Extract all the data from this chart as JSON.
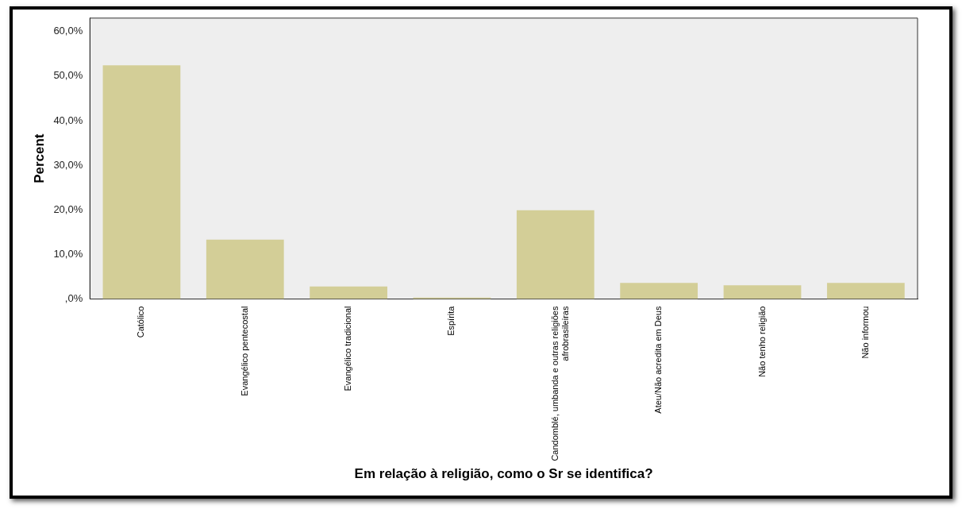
{
  "chart_data": {
    "type": "bar",
    "xlabel": "Em relação à religião, como o Sr se identifica?",
    "ylabel": "Percent",
    "categories": [
      "Católico",
      "Evangélico pentecostal",
      "Evangélico tradicional",
      "Espírita",
      "Candomblé, umbanda e outras religiões afrobrasileiras",
      "Ateu/Não acredita em Deus",
      "Não tenho religião",
      "Não informou"
    ],
    "values": [
      52.4,
      13.3,
      2.8,
      0.3,
      19.9,
      3.6,
      3.1,
      3.6
    ],
    "color": "#d3ce97",
    "ylim": [
      0,
      63
    ],
    "yticks": [
      {
        "value": 0,
        "label": ",0%"
      },
      {
        "value": 10,
        "label": "10,0%"
      },
      {
        "value": 20,
        "label": "20,0%"
      },
      {
        "value": 30,
        "label": "30,0%"
      },
      {
        "value": 40,
        "label": "40,0%"
      },
      {
        "value": 50,
        "label": "50,0%"
      },
      {
        "value": 60,
        "label": "60,0%"
      }
    ],
    "grid": false,
    "legend": false
  }
}
